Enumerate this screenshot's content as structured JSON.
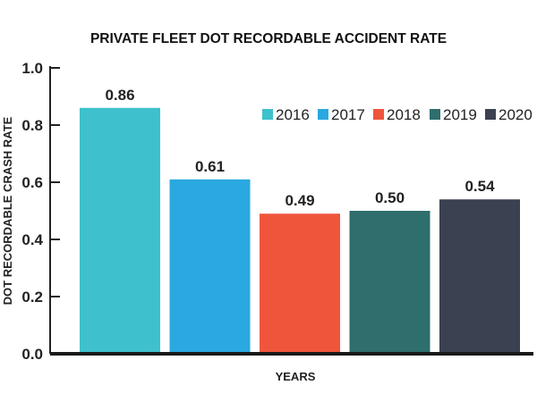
{
  "chart_data": {
    "type": "bar",
    "title": "PRIVATE FLEET DOT RECORDABLE ACCIDENT RATE",
    "xlabel": "YEARS",
    "ylabel": "DOT RECORDABLE CRASH RATE",
    "ylim": [
      0,
      1.0
    ],
    "yticks": [
      "0.0",
      "0.2",
      "0.4",
      "0.6",
      "0.8",
      "1.0"
    ],
    "categories": [
      "2016",
      "2017",
      "2018",
      "2019",
      "2020"
    ],
    "values": [
      0.86,
      0.61,
      0.49,
      0.5,
      0.54
    ],
    "value_labels": [
      "0.86",
      "0.61",
      "0.49",
      "0.50",
      "0.54"
    ],
    "colors": [
      "#3ec1cc",
      "#2aa8e0",
      "#ef553b",
      "#2e6e6c",
      "#3b4150"
    ],
    "legend": {
      "placement": "top-right",
      "entries": [
        "2016",
        "2017",
        "2018",
        "2019",
        "2020"
      ]
    },
    "grid": false
  }
}
